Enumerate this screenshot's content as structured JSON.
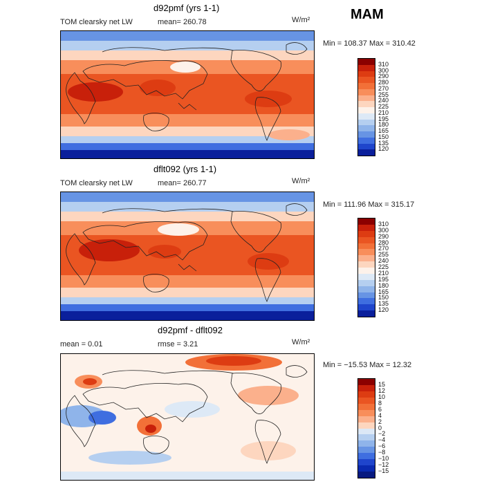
{
  "figure": {
    "season": "MAM"
  },
  "panels": [
    {
      "title": "d92pmf (yrs 1-1)",
      "left_label": "TOM clearsky net LW",
      "mean_label": "mean=  260.78",
      "units": "W/m²",
      "minmax": "Min = 108.37 Max = 310.42",
      "colorbar": {
        "labels": [
          "310",
          "300",
          "290",
          "280",
          "270",
          "255",
          "240",
          "225",
          "210",
          "195",
          "180",
          "165",
          "150",
          "135",
          "120"
        ],
        "colors": [
          "#8b0000",
          "#c8200a",
          "#dd3c12",
          "#ea5522",
          "#f27038",
          "#f88e5b",
          "#fbb08c",
          "#fdd6bf",
          "#fdf2ea",
          "#dde9f6",
          "#b5cff0",
          "#8fb4ea",
          "#6794e4",
          "#3f6ee0",
          "#1f45cc",
          "#0a1f9b"
        ]
      }
    },
    {
      "title": "dflt092 (yrs 1-1)",
      "left_label": "TOM clearsky net LW",
      "mean_label": "mean=  260.77",
      "units": "W/m²",
      "minmax": "Min = 111.96 Max = 315.17",
      "colorbar": {
        "labels": [
          "310",
          "300",
          "290",
          "280",
          "270",
          "255",
          "240",
          "225",
          "210",
          "195",
          "180",
          "165",
          "150",
          "135",
          "120"
        ],
        "colors": [
          "#8b0000",
          "#c8200a",
          "#dd3c12",
          "#ea5522",
          "#f27038",
          "#f88e5b",
          "#fbb08c",
          "#fdd6bf",
          "#fdf2ea",
          "#dde9f6",
          "#b5cff0",
          "#8fb4ea",
          "#6794e4",
          "#3f6ee0",
          "#1f45cc",
          "#0a1f9b"
        ]
      }
    },
    {
      "title": "d92pmf - dflt092",
      "left_label": "mean =    0.01",
      "mean_label": "rmse =    3.21",
      "units": "W/m²",
      "minmax": "Min = −15.53  Max =   12.32",
      "colorbar": {
        "labels": [
          "15",
          "12",
          "10",
          "8",
          "6",
          "4",
          "2",
          "0",
          "−2",
          "−4",
          "−6",
          "−8",
          "−10",
          "−12",
          "−15"
        ],
        "colors": [
          "#8b0000",
          "#c8200a",
          "#dd3c12",
          "#ea5522",
          "#f27038",
          "#f88e5b",
          "#fbb08c",
          "#fdd6bf",
          "#dce8f6",
          "#b5cff0",
          "#8fb4ea",
          "#6794e4",
          "#3f6ee0",
          "#1f45cc",
          "#0a2ab0",
          "#081a80"
        ]
      }
    }
  ]
}
